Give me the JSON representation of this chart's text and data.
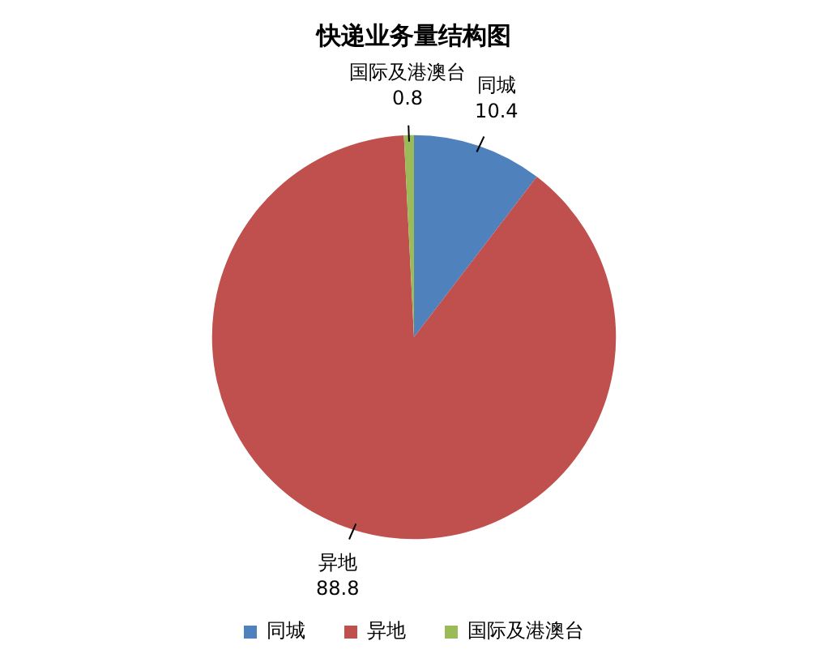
{
  "chart_data": {
    "type": "pie",
    "title": "快递业务量结构图",
    "categories": [
      "同城",
      "异地",
      "国际及港澳台"
    ],
    "values": [
      10.4,
      88.8,
      0.8
    ],
    "colors": [
      "#4f81bd",
      "#c0504d",
      "#9bbb59"
    ],
    "data_labels": true,
    "legend": "bottom"
  }
}
